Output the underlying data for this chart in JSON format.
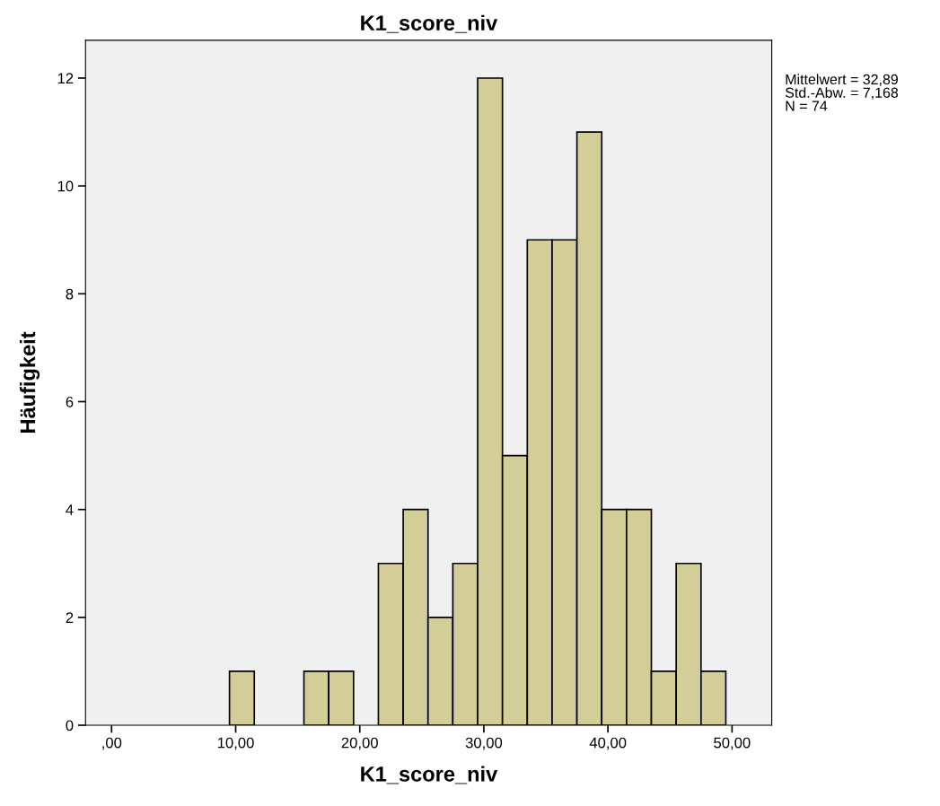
{
  "chart_data": {
    "type": "histogram",
    "title": "K1_score_niv",
    "xlabel": "K1_score_niv",
    "ylabel": "Häufigkeit",
    "bins": [
      9.5,
      11.5,
      13.5,
      15.5,
      17.5,
      19.5,
      21.5,
      23.5,
      25.5,
      27.5,
      29.5,
      31.5,
      33.5,
      35.5,
      37.5,
      39.5,
      41.5,
      43.5,
      45.5,
      47.5,
      49.5
    ],
    "values": [
      1,
      0,
      0,
      1,
      1,
      0,
      3,
      4,
      2,
      3,
      12,
      5,
      9,
      9,
      11,
      4,
      4,
      1,
      3,
      1
    ],
    "color": "#d3ce97",
    "xlim": [
      -2.1,
      53.2
    ],
    "ylim": [
      0,
      12.7
    ],
    "xticks": [
      {
        "value": 0,
        "label": ",00"
      },
      {
        "value": 10,
        "label": "10,00"
      },
      {
        "value": 20,
        "label": "20,00"
      },
      {
        "value": 30,
        "label": "30,00"
      },
      {
        "value": 40,
        "label": "40,00"
      },
      {
        "value": 50,
        "label": "50,00"
      }
    ],
    "yticks": [
      0,
      2,
      4,
      6,
      8,
      10,
      12
    ],
    "grid": false,
    "legend": false,
    "annotations": [
      "Mittelwert = 32,89",
      "Std.-Abw. = 7,168",
      "N = 74"
    ]
  }
}
